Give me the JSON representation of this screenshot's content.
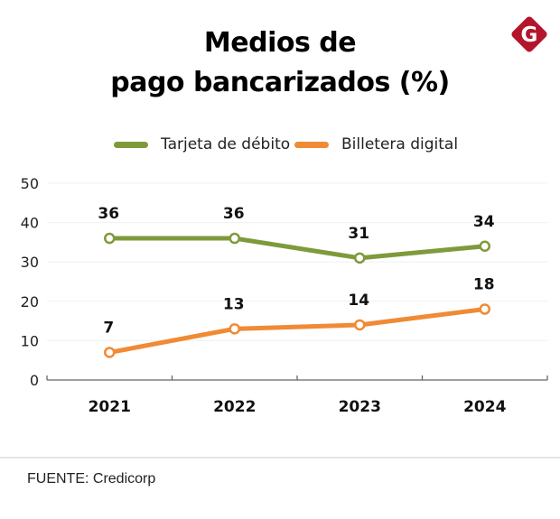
{
  "header": {
    "title_line1": "Medios de",
    "title_line2": "pago bancarizados (%)",
    "logo_letter": "G",
    "logo_icon": "brand-g-diamond-icon",
    "logo_color": "#b5152b"
  },
  "legend": [
    {
      "label": "Tarjeta de débito",
      "color": "#7e9a3a"
    },
    {
      "label": "Billetera digital",
      "color": "#f08a35"
    }
  ],
  "chart_data": {
    "type": "line",
    "title": "Medios de pago bancarizados (%)",
    "xlabel": "",
    "ylabel": "",
    "categories": [
      "2021",
      "2022",
      "2023",
      "2024"
    ],
    "ylim": [
      0,
      50
    ],
    "yticks": [
      "0",
      "10",
      "20",
      "30",
      "40",
      "50"
    ],
    "grid": true,
    "legend_position": "top-center",
    "series": [
      {
        "name": "Tarjeta de débito",
        "color": "#7e9a3a",
        "values": [
          36,
          36,
          31,
          34
        ],
        "labels": [
          "36",
          "36",
          "31",
          "34"
        ]
      },
      {
        "name": "Billetera digital",
        "color": "#f08a35",
        "values": [
          7,
          13,
          14,
          18
        ],
        "labels": [
          "7",
          "13",
          "14",
          "18"
        ]
      }
    ]
  },
  "footer": {
    "source": "FUENTE: Credicorp"
  }
}
